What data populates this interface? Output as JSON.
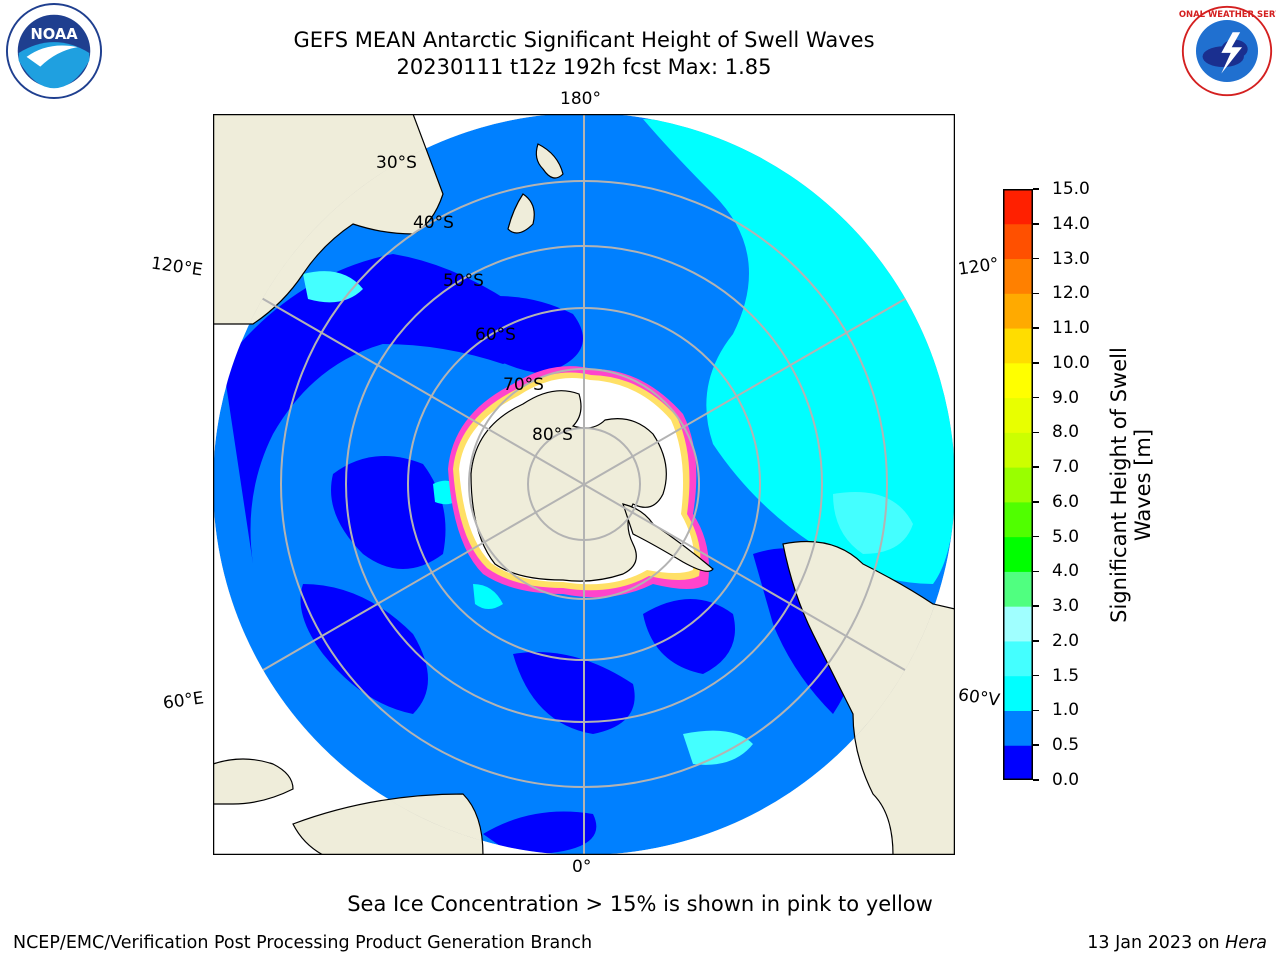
{
  "header": {
    "title_line1": "GEFS MEAN Antarctic Significant Height of Swell Waves",
    "title_line2": "20230111 t12z 192h fcst   Max: 1.85"
  },
  "logos": {
    "left": {
      "icon": "noaa-logo",
      "text": "NOAA"
    },
    "right": {
      "icon": "national-weather-service-logo",
      "text": "NATIONAL WEATHER SERVICE"
    }
  },
  "map": {
    "projection": "south-polar-stereographic",
    "longitude_labels": {
      "top": "180°",
      "bottom": "0°",
      "upper_left": "120°E",
      "upper_right": "120°",
      "lower_left": "60°E",
      "lower_right": "60°V"
    },
    "latitude_labels": [
      "30°S",
      "40°S",
      "50°S",
      "60°S",
      "70°S",
      "80°S"
    ],
    "colors": {
      "land": "#efedda",
      "grid": "#b3b3b3",
      "coast": "#000000",
      "ice_white": "#ffffff",
      "ice_pink": "#ff44cc",
      "ice_yellow": "#ffe066"
    }
  },
  "colorbar": {
    "title": "Significant Height of Swell\nWaves [m]",
    "ticks": [
      "0.0",
      "0.5",
      "1.0",
      "1.5",
      "2.0",
      "3.0",
      "4.0",
      "5.0",
      "6.0",
      "7.0",
      "8.0",
      "9.0",
      "10.0",
      "11.0",
      "12.0",
      "13.0",
      "14.0",
      "15.0"
    ],
    "colors": [
      "#0000ff",
      "#0080ff",
      "#00ffff",
      "#44ffff",
      "#a0ffff",
      "#50ff80",
      "#00ff00",
      "#50ff00",
      "#99ff00",
      "#ccff00",
      "#e8ff00",
      "#ffff00",
      "#ffdd00",
      "#ffaa00",
      "#ff8000",
      "#ff5000",
      "#ff2000"
    ]
  },
  "footer": {
    "caption": "Sea Ice Concentration > 15% is shown in pink to yellow",
    "credit": "NCEP/EMC/Verification Post Processing Product Generation Branch",
    "date": "13 Jan 2023 on ",
    "host": "Hera"
  }
}
